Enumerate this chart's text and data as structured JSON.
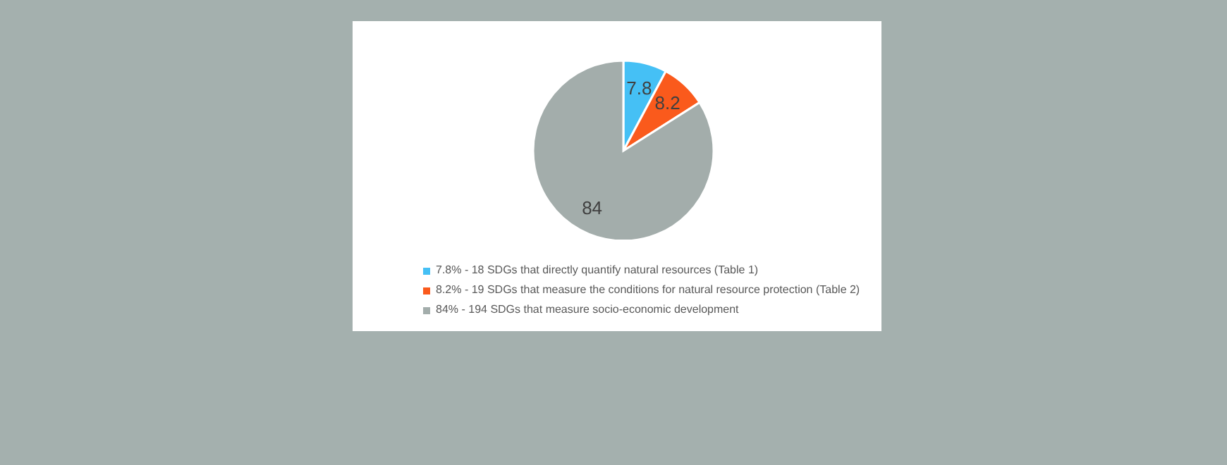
{
  "chart_data": {
    "type": "pie",
    "categories": [
      "7.8%  - 18 SDGs that directly quantify natural resources (Table 1)",
      "8.2% - 19 SDGs that measure the conditions for natural resource protection (Table 2)",
      "84% - 194 SDGs that measure socio-economic development"
    ],
    "values": [
      7.8,
      8.2,
      84
    ],
    "colors": [
      "#45c0f5",
      "#fa5a1c",
      "#a3adab"
    ],
    "data_labels": true,
    "legend": "bottom"
  }
}
